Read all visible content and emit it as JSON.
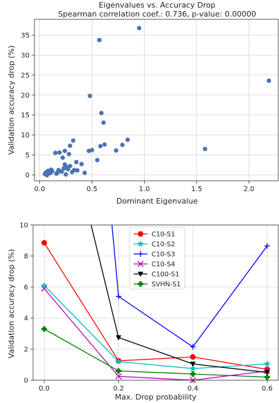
{
  "chart_data": [
    {
      "type": "scatter",
      "title": "Eigenvalues vs. Accuracy Drop",
      "subtitle": "Spearman correlation coef.: 0.736, p-value: 0.00000",
      "xlabel": "Dominant Eigenvalue",
      "ylabel": "Validation accuracy drop (%)",
      "xlim": [
        -0.05,
        2.28
      ],
      "ylim": [
        -1.5,
        39
      ],
      "xticks": [
        0.0,
        0.5,
        1.0,
        1.5,
        2.0
      ],
      "xtick_labels": [
        "0.0",
        "0.5",
        "1.0",
        "1.5",
        "2.0"
      ],
      "yticks": [
        0,
        5,
        10,
        15,
        20,
        25,
        30,
        35
      ],
      "ytick_labels": [
        "0",
        "5",
        "10",
        "15",
        "20",
        "25",
        "30",
        "35"
      ],
      "grid": true,
      "color": "#4c72b0",
      "points": [
        {
          "x": 0.05,
          "y": 0.2
        },
        {
          "x": 0.06,
          "y": 0.6
        },
        {
          "x": 0.07,
          "y": -0.1
        },
        {
          "x": 0.08,
          "y": 1.0
        },
        {
          "x": 0.1,
          "y": 0.4
        },
        {
          "x": 0.11,
          "y": 1.3
        },
        {
          "x": 0.12,
          "y": 0.9
        },
        {
          "x": 0.16,
          "y": 0.3
        },
        {
          "x": 0.17,
          "y": 0.5
        },
        {
          "x": 0.18,
          "y": 1.2
        },
        {
          "x": 0.21,
          "y": 0.8
        },
        {
          "x": 0.23,
          "y": 1.6
        },
        {
          "x": 0.24,
          "y": 2.6
        },
        {
          "x": 0.25,
          "y": 0.1
        },
        {
          "x": 0.26,
          "y": 1.9
        },
        {
          "x": 0.27,
          "y": 1.4
        },
        {
          "x": 0.29,
          "y": 2.2
        },
        {
          "x": 0.31,
          "y": 0.7
        },
        {
          "x": 0.33,
          "y": 1.2
        },
        {
          "x": 0.35,
          "y": 3.2
        },
        {
          "x": 0.36,
          "y": 1.1
        },
        {
          "x": 0.4,
          "y": 2.7
        },
        {
          "x": 0.43,
          "y": 0.5
        },
        {
          "x": 0.47,
          "y": 6.0
        },
        {
          "x": 0.5,
          "y": 6.2
        },
        {
          "x": 0.15,
          "y": 5.5
        },
        {
          "x": 0.19,
          "y": 5.6
        },
        {
          "x": 0.22,
          "y": 4.3
        },
        {
          "x": 0.24,
          "y": 6.0
        },
        {
          "x": 0.28,
          "y": 5.2
        },
        {
          "x": 0.29,
          "y": 7.3
        },
        {
          "x": 0.32,
          "y": 8.6
        },
        {
          "x": 0.55,
          "y": 3.7
        },
        {
          "x": 0.58,
          "y": 7.2
        },
        {
          "x": 0.62,
          "y": 7.6
        },
        {
          "x": 0.73,
          "y": 6.1
        },
        {
          "x": 0.79,
          "y": 7.5
        },
        {
          "x": 0.84,
          "y": 8.8
        },
        {
          "x": 0.48,
          "y": 19.8
        },
        {
          "x": 0.59,
          "y": 15.5
        },
        {
          "x": 0.61,
          "y": 13.1
        },
        {
          "x": 0.57,
          "y": 33.8
        },
        {
          "x": 0.95,
          "y": 36.8
        },
        {
          "x": 1.58,
          "y": 6.5
        },
        {
          "x": 2.19,
          "y": 23.6
        }
      ]
    },
    {
      "type": "line",
      "xlabel": "Max. Drop probability",
      "ylabel": "Validation accuracy drop (%)",
      "xlim": [
        -0.03,
        0.63
      ],
      "ylim": [
        0,
        10
      ],
      "xticks": [
        0.0,
        0.2,
        0.4,
        0.6
      ],
      "xtick_labels": [
        "0.0",
        "0.2",
        "0.4",
        "0.6"
      ],
      "yticks": [
        0,
        2,
        4,
        6,
        8,
        10
      ],
      "ytick_labels": [
        "0",
        "2",
        "4",
        "6",
        "8",
        "10"
      ],
      "grid": true,
      "legend": "top-center",
      "x": [
        0.0,
        0.2,
        0.4,
        0.6
      ],
      "series": [
        {
          "name": "C10-S1",
          "color": "#ff0000",
          "marker": "circle",
          "values": [
            8.85,
            1.25,
            1.5,
            0.7
          ]
        },
        {
          "name": "C10-S2",
          "color": "#00bfbf",
          "marker": "star",
          "values": [
            6.1,
            1.2,
            0.75,
            1.05
          ]
        },
        {
          "name": "C10-S3",
          "color": "#0000ff",
          "marker": "plus",
          "values": [
            null,
            5.4,
            2.15,
            8.65
          ],
          "extend_from": [
            0.18,
            10.6
          ]
        },
        {
          "name": "C10-S4",
          "color": "#bf00bf",
          "marker": "x",
          "values": [
            5.9,
            0.25,
            0.0,
            0.6
          ]
        },
        {
          "name": "C100-S1",
          "color": "#000000",
          "marker": "triangle-down",
          "values": [
            null,
            2.75,
            1.05,
            0.5
          ],
          "extend_from": [
            0.12,
            10.6
          ]
        },
        {
          "name": "SVHN-S1",
          "color": "#008000",
          "marker": "plus-filled",
          "values": [
            3.3,
            0.6,
            0.4,
            0.2
          ]
        }
      ]
    }
  ]
}
